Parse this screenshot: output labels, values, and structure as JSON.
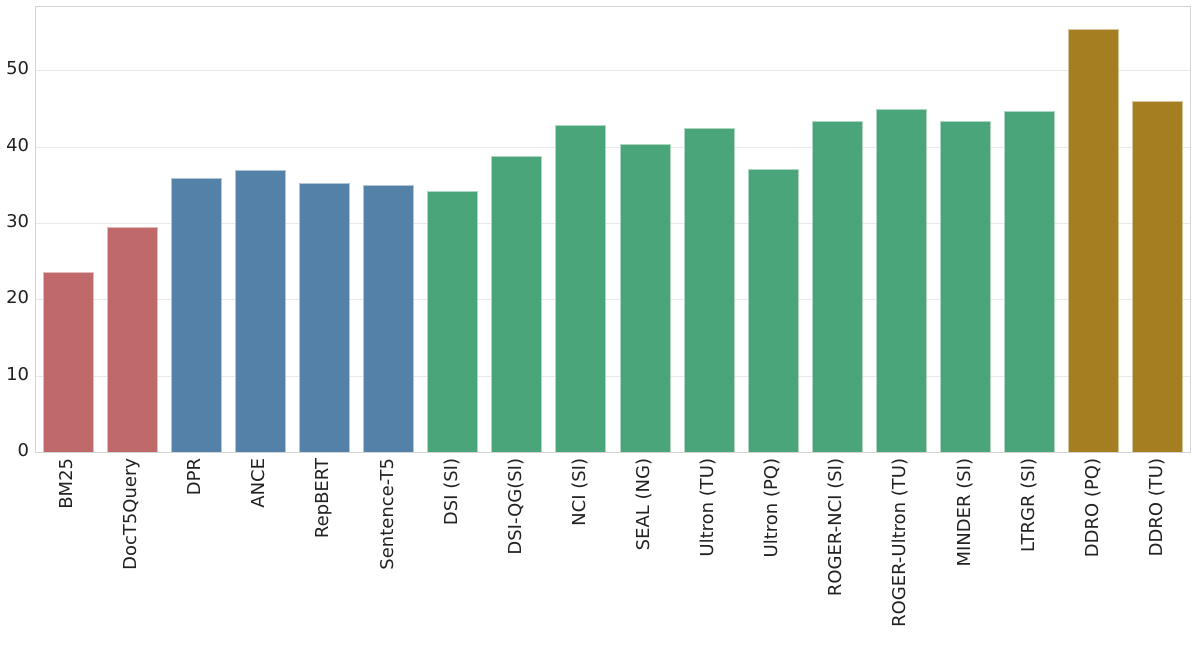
{
  "figure": {
    "background": "#ffffff",
    "grid_color": "#e9e9e9",
    "spine_color": "#d4d4d4",
    "tick_label_color": "#222222",
    "bar_edge_color": "rgba(255,255,255,0.55)"
  },
  "chart_data": {
    "type": "bar",
    "title": "",
    "xlabel": "",
    "ylabel": "",
    "categories": [
      "BM25",
      "DocT5Query",
      "DPR",
      "ANCE",
      "RepBERT",
      "Sentence-T5",
      "DSI (SI)",
      "DSI-QG(SI)",
      "NCI (SI)",
      "SEAL (NG)",
      "Ultron (TU)",
      "Ultron (PQ)",
      "ROGER-NCI (SI)",
      "ROGER-Ultron (TU)",
      "MINDER (SI)",
      "LTRGR (SI)",
      "DDRO (PQ)",
      "DDRO (TU)"
    ],
    "values": [
      23.6,
      29.5,
      35.9,
      36.9,
      35.2,
      35.0,
      34.2,
      38.8,
      42.8,
      40.3,
      42.5,
      37.1,
      43.4,
      44.9,
      43.4,
      44.7,
      55.4,
      46.0
    ],
    "groups": [
      "lexical",
      "lexical",
      "dense",
      "dense",
      "dense",
      "dense",
      "generative",
      "generative",
      "generative",
      "generative",
      "generative",
      "generative",
      "generative",
      "generative",
      "generative",
      "generative",
      "ddro",
      "ddro"
    ],
    "group_colors": {
      "lexical": "#c0696b",
      "dense": "#5381a8",
      "generative": "#4aa57a",
      "ddro": "#a57e22"
    },
    "yticks": [
      0,
      10,
      20,
      30,
      40,
      50
    ],
    "ylim": [
      0,
      58.3
    ],
    "grid": true,
    "legend": "none",
    "x_tick_rotation_deg": 90
  }
}
